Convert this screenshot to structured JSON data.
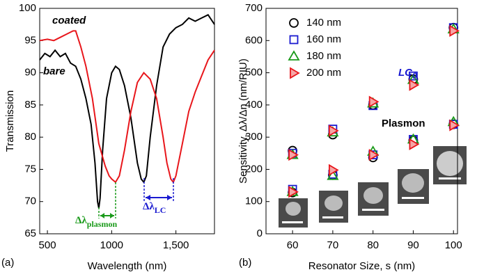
{
  "chart_data": [
    {
      "type": "line",
      "panel_label": "(a)",
      "xlabel": "Wavelength (nm)",
      "ylabel": "Transmission",
      "xlim": [
        440,
        1800
      ],
      "ylim": [
        65,
        100
      ],
      "xticks": [
        500,
        1000,
        {
          "value": 1500,
          "label": "1,500"
        }
      ],
      "yticks": [
        65,
        70,
        75,
        80,
        85,
        90,
        95,
        100
      ],
      "series": [
        {
          "name": "bare",
          "color": "#000000",
          "x": [
            440,
            480,
            520,
            560,
            600,
            640,
            680,
            720,
            760,
            800,
            840,
            870,
            890,
            900,
            910,
            930,
            960,
            1000,
            1030,
            1060,
            1100,
            1150,
            1200,
            1230,
            1250,
            1270,
            1300,
            1350,
            1400,
            1450,
            1500,
            1550,
            1600,
            1650,
            1700,
            1750,
            1800
          ],
          "values": [
            92,
            93,
            92.5,
            93.5,
            92.5,
            93,
            91.5,
            91,
            89,
            86,
            82,
            76,
            70,
            69,
            70.5,
            78,
            86,
            90,
            91,
            90.5,
            88,
            83,
            76,
            73.5,
            73,
            74,
            80,
            88,
            94,
            96,
            97,
            97.5,
            98.5,
            98,
            98.5,
            99,
            97.5
          ]
        },
        {
          "name": "coated",
          "color": "#e8161b",
          "x": [
            440,
            500,
            550,
            600,
            650,
            700,
            720,
            760,
            800,
            850,
            900,
            950,
            980,
            1000,
            1030,
            1060,
            1100,
            1150,
            1200,
            1250,
            1300,
            1350,
            1400,
            1430,
            1460,
            1480,
            1500,
            1550,
            1600,
            1650,
            1700,
            1750,
            1800
          ],
          "values": [
            95,
            95.2,
            95,
            95.5,
            96,
            96.5,
            96.5,
            94,
            91,
            86,
            79,
            75.5,
            74,
            73.5,
            73,
            74,
            78,
            84,
            88.5,
            90,
            89,
            86,
            80,
            76,
            73.5,
            73,
            74,
            79,
            84,
            87,
            89.5,
            92,
            93.5
          ]
        }
      ],
      "annotations": [
        {
          "text": "coated",
          "color": "#e8161b"
        },
        {
          "text": "bare",
          "color": "#000000"
        },
        {
          "text": "Δλ",
          "sub": "plasmon",
          "color": "#1a9a1a"
        },
        {
          "text": "Δλ",
          "sub": "LC",
          "color": "#1a1ad0"
        }
      ]
    },
    {
      "type": "scatter",
      "panel_label": "(b)",
      "xlabel": "Resonator Size, s (nm)",
      "ylabel": "Sensitivity, Δλ/Δn (nm/RIU)",
      "xlim": [
        53.4,
        101
      ],
      "ylim": [
        0,
        700
      ],
      "xticks": [
        60,
        70,
        80,
        90,
        100
      ],
      "yticks": [
        0,
        100,
        200,
        300,
        400,
        500,
        600,
        700
      ],
      "x": [
        60,
        60,
        70,
        70,
        80,
        80,
        90,
        90,
        100,
        100
      ],
      "series": [
        {
          "name": "140 nm",
          "color": "#000000",
          "marker": "circle",
          "values": [
            258,
            128,
            308,
            182,
            400,
            237,
            480,
            290,
            640,
            340
          ]
        },
        {
          "name": "160 nm",
          "color": "#1a1ad0",
          "marker": "square",
          "values": [
            250,
            138,
            325,
            185,
            398,
            245,
            490,
            293,
            640,
            340
          ]
        },
        {
          "name": "180 nm",
          "color": "#1a9a1a",
          "marker": "triangle",
          "values": [
            245,
            130,
            315,
            180,
            405,
            255,
            478,
            293,
            635,
            347
          ]
        },
        {
          "name": "200 nm",
          "color": "#e8161b",
          "marker": "triangle-right",
          "values": [
            245,
            130,
            320,
            198,
            410,
            245,
            462,
            278,
            630,
            337
          ]
        }
      ],
      "annotations": [
        {
          "text": "LC",
          "sub": "0",
          "color": "#1a1ad0"
        },
        {
          "text": "Plasmon",
          "color": "#1a9a1a"
        }
      ]
    }
  ]
}
